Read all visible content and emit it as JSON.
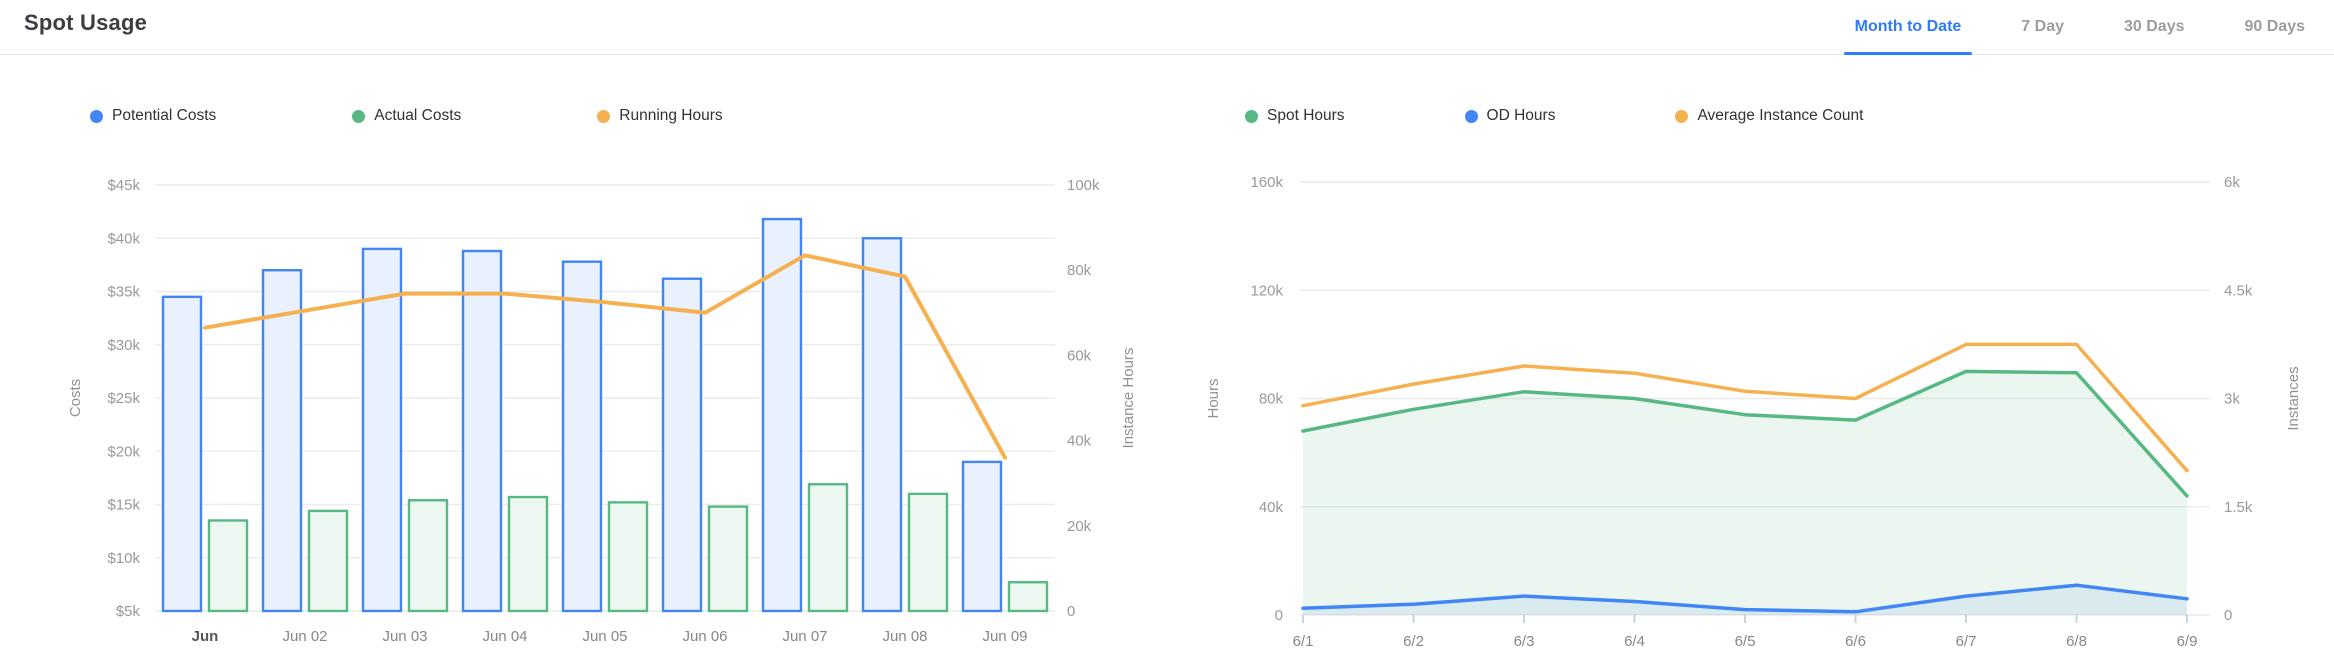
{
  "header": {
    "title": "Spot Usage"
  },
  "tabs": [
    {
      "label": "Month to Date",
      "active": true
    },
    {
      "label": "7 Day",
      "active": false
    },
    {
      "label": "30 Days",
      "active": false
    },
    {
      "label": "90 Days",
      "active": false
    }
  ],
  "colors": {
    "blue": "#4285F4",
    "blue_fill": "#E9F0FE",
    "blue_area_fill": "rgba(66,133,244,0.10)",
    "green": "#58B884",
    "green_fill": "#EDF7F1",
    "green_area_fill": "rgba(88,184,132,0.12)",
    "orange": "#F5B04F",
    "grid": "#ececec",
    "tick_mark": "#ccd2dc",
    "tab_active": "#2e7cf6",
    "tab_inactive": "#9b9da1"
  },
  "chart_data": [
    {
      "type": "bar",
      "title": "Costs and Running Hours by day",
      "categories": [
        "Jun",
        "Jun 02",
        "Jun 03",
        "Jun 04",
        "Jun 05",
        "Jun 06",
        "Jun 07",
        "Jun 08",
        "Jun 09"
      ],
      "series": [
        {
          "name": "Potential Costs",
          "kind": "bar",
          "axis": "left",
          "color": "#4285F4",
          "fill": "#E9F0FE",
          "values": [
            34500,
            37000,
            39000,
            38800,
            37800,
            36200,
            41800,
            40000,
            19000
          ]
        },
        {
          "name": "Actual Costs",
          "kind": "bar",
          "axis": "left",
          "color": "#58B884",
          "fill": "#EDF7F1",
          "values": [
            13500,
            14400,
            15400,
            15700,
            15200,
            14800,
            16900,
            16000,
            7700
          ]
        },
        {
          "name": "Running Hours",
          "kind": "line",
          "axis": "right",
          "color": "#F5B04F",
          "values": [
            66500,
            70500,
            74500,
            74500,
            72500,
            70000,
            83500,
            78500,
            36000
          ]
        }
      ],
      "left_axis": {
        "label": "Costs",
        "min": 5000,
        "max": 45000,
        "ticks": [
          "$45k",
          "$40k",
          "$35k",
          "$30k",
          "$25k",
          "$20k",
          "$15k",
          "$10k",
          "$5k"
        ]
      },
      "right_axis": {
        "label": "Instance Hours",
        "min": 0,
        "max": 100000,
        "ticks": [
          "100k",
          "80k",
          "60k",
          "40k",
          "20k",
          "0"
        ]
      },
      "grid": true,
      "legend_position": "top"
    },
    {
      "type": "area",
      "title": "Spot / OD Hours and Average Instance Count by day",
      "categories": [
        "6/1",
        "6/2",
        "6/3",
        "6/4",
        "6/5",
        "6/6",
        "6/7",
        "6/8",
        "6/9"
      ],
      "series": [
        {
          "name": "Spot Hours",
          "kind": "area",
          "axis": "left",
          "color": "#58B884",
          "fill": "rgba(88,184,132,0.12)",
          "values": [
            68000,
            76000,
            82500,
            80000,
            74000,
            72000,
            90000,
            89500,
            44000
          ]
        },
        {
          "name": "OD Hours",
          "kind": "area",
          "axis": "left",
          "color": "#4285F4",
          "fill": "rgba(66,133,244,0.10)",
          "values": [
            2500,
            4000,
            7000,
            5000,
            2000,
            1200,
            7000,
            11000,
            6000
          ]
        },
        {
          "name": "Average Instance Count",
          "kind": "line",
          "axis": "right",
          "color": "#F5B04F",
          "values": [
            2900,
            3200,
            3450,
            3350,
            3100,
            3000,
            3750,
            3750,
            2000
          ]
        }
      ],
      "left_axis": {
        "label": "Hours",
        "min": 0,
        "max": 160000,
        "ticks": [
          "160k",
          "120k",
          "80k",
          "40k",
          "0"
        ]
      },
      "right_axis": {
        "label": "Instances",
        "min": 0,
        "max": 6000,
        "ticks": [
          "6k",
          "4.5k",
          "3k",
          "1.5k",
          "0"
        ]
      },
      "grid": true,
      "legend_position": "top"
    }
  ]
}
